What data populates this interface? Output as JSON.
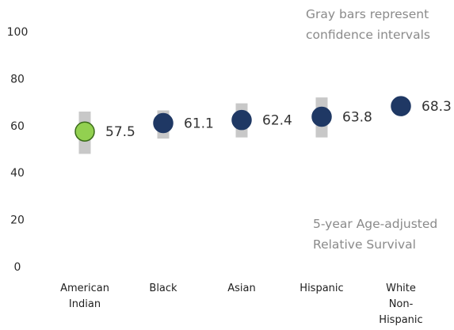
{
  "chart_data": {
    "type": "scatter",
    "categories": [
      [
        "American",
        "Indian"
      ],
      [
        "Black"
      ],
      [
        "Asian"
      ],
      [
        "Hispanic"
      ],
      [
        "White",
        "Non-",
        "Hispanic"
      ]
    ],
    "values": [
      57.5,
      61.1,
      62.4,
      63.8,
      68.3
    ],
    "data_labels": [
      "57.5",
      "61.1",
      "62.4",
      "63.8",
      "68.3"
    ],
    "confidence_intervals": [
      [
        48,
        66
      ],
      [
        54.5,
        66.5
      ],
      [
        55,
        69.5
      ],
      [
        55,
        72
      ],
      [
        null,
        null
      ]
    ],
    "point_colors": [
      "#92d050",
      "#1f3864",
      "#1f3864",
      "#1f3864",
      "#1f3864"
    ],
    "point_stroke_colors": [
      "#3a6b1a",
      "#1f3864",
      "#1f3864",
      "#1f3864",
      "#1f3864"
    ],
    "ci_color": "#c8c8c8",
    "ylim": [
      0,
      100
    ],
    "yticks": [
      0,
      20,
      40,
      60,
      80,
      100
    ],
    "grid": false,
    "annotations": {
      "top_right": [
        "Gray bars represent",
        "confidence intervals"
      ],
      "bottom_right": [
        "5-year Age-adjusted",
        "Relative Survival"
      ]
    }
  }
}
